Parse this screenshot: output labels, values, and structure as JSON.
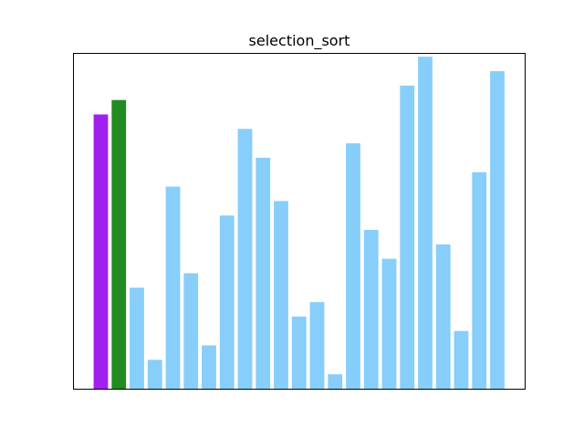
{
  "chart_data": {
    "type": "bar",
    "title": "selection_sort",
    "xlabel": "",
    "ylabel": "",
    "grid": false,
    "legend": "none",
    "axes_ticks": "hidden",
    "values": [
      19,
      20,
      7,
      2,
      14,
      8,
      3,
      12,
      18,
      16,
      13,
      5,
      6,
      1,
      17,
      11,
      9,
      21,
      23,
      10,
      4,
      15,
      22
    ],
    "bar_colors": [
      "#a020f0",
      "#228b22",
      "#87cefa",
      "#87cefa",
      "#87cefa",
      "#87cefa",
      "#87cefa",
      "#87cefa",
      "#87cefa",
      "#87cefa",
      "#87cefa",
      "#87cefa",
      "#87cefa",
      "#87cefa",
      "#87cefa",
      "#87cefa",
      "#87cefa",
      "#87cefa",
      "#87cefa",
      "#87cefa",
      "#87cefa",
      "#87cefa",
      "#87cefa"
    ],
    "default_color": "#87cefa",
    "ylim": [
      0,
      23.2
    ]
  }
}
